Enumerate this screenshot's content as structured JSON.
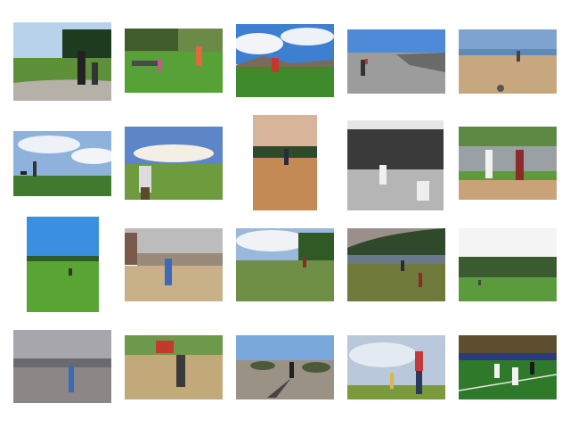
{
  "grid": {
    "rows": 4,
    "columns": 5,
    "background": "#ffffff"
  },
  "thumbnails": [
    {
      "scene": "park-people-kite",
      "sky": "#a9c7e6",
      "ground": "#5f8f3a",
      "grayscale": false
    },
    {
      "scene": "park-trees-kids",
      "sky": "#6f8f4a",
      "ground": "#58a03a",
      "grayscale": false
    },
    {
      "scene": "field-clouds-kite",
      "sky": "#3d7fd0",
      "ground": "#3f8a2a",
      "grayscale": false
    },
    {
      "scene": "beach-bw-figures",
      "sky": "#4f8ad8",
      "ground": "#9a9a9a",
      "grayscale": false
    },
    {
      "scene": "beach-sand-sea",
      "sky": "#7ea3cf",
      "ground": "#c7a77d",
      "grayscale": false
    },
    {
      "scene": "hill-cloudy-dog",
      "sky": "#8fb2dc",
      "ground": "#3f7a2e",
      "grayscale": false
    },
    {
      "scene": "field-person-back",
      "sky": "#5d86c8",
      "ground": "#6f9b3f",
      "grayscale": false
    },
    {
      "scene": "dirt-field-dusk",
      "sky": "#d8b49a",
      "ground": "#c48a55",
      "grayscale": false
    },
    {
      "scene": "bw-baseball-trees",
      "sky": "#d9d9d9",
      "ground": "#b9b9b9",
      "grayscale": true
    },
    {
      "scene": "baseball-fence",
      "sky": "#5c8a44",
      "ground": "#c9a27a",
      "grayscale": false
    },
    {
      "scene": "grass-blue-sky",
      "sky": "#3b8fe0",
      "ground": "#59a534",
      "grayscale": false
    },
    {
      "scene": "beach-building",
      "sky": "#bcbcbc",
      "ground": "#c8b089",
      "grayscale": false
    },
    {
      "scene": "field-cloudy-trees",
      "sky": "#9ab8db",
      "ground": "#6e8f45",
      "grayscale": false
    },
    {
      "scene": "lake-hills-field",
      "sky": "#9a8f8a",
      "ground": "#6f7a3a",
      "grayscale": false
    },
    {
      "scene": "white-sky-trees",
      "sky": "#f4f4f4",
      "ground": "#5c9b3d",
      "grayscale": false
    },
    {
      "scene": "hazy-beach-kite",
      "sky": "#a7a6ad",
      "ground": "#8c8786",
      "grayscale": false
    },
    {
      "scene": "sand-hill-person",
      "sky": "#6c9a4a",
      "ground": "#c2a97a",
      "grayscale": false
    },
    {
      "scene": "dunes-shadow",
      "sky": "#7aa8dc",
      "ground": "#9a9284",
      "grayscale": false
    },
    {
      "scene": "man-kite-sky",
      "sky": "#b9c8da",
      "ground": "#7a9a3c",
      "grayscale": false
    },
    {
      "scene": "stadium-players",
      "sky": "#5c4e2f",
      "ground": "#2f7a2a",
      "grayscale": false
    }
  ]
}
